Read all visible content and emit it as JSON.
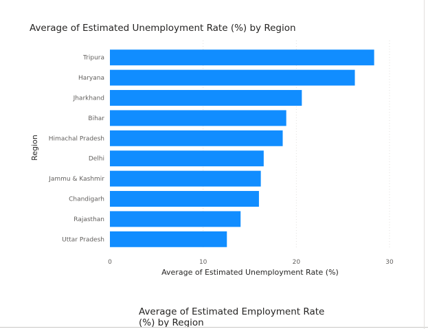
{
  "chart_data": {
    "type": "bar",
    "orientation": "horizontal",
    "title": "Average of Estimated Unemployment Rate (%) by Region",
    "xlabel": "Average of Estimated Unemployment Rate (%)",
    "ylabel": "Region",
    "categories": [
      "Tripura",
      "Haryana",
      "Jharkhand",
      "Bihar",
      "Himachal Pradesh",
      "Delhi",
      "Jammu & Kashmir",
      "Chandigarh",
      "Rajasthan",
      "Uttar Pradesh"
    ],
    "values": [
      28.35,
      26.28,
      20.59,
      18.92,
      18.54,
      16.5,
      16.19,
      15.99,
      14.02,
      12.55
    ],
    "xlim": [
      0,
      30
    ],
    "xticks": [
      "0",
      "10",
      "20",
      "30"
    ],
    "grid": true,
    "bar_color": "#118dff"
  },
  "next_visual": {
    "title": "Average of Estimated Employment Rate (%) by Region"
  }
}
